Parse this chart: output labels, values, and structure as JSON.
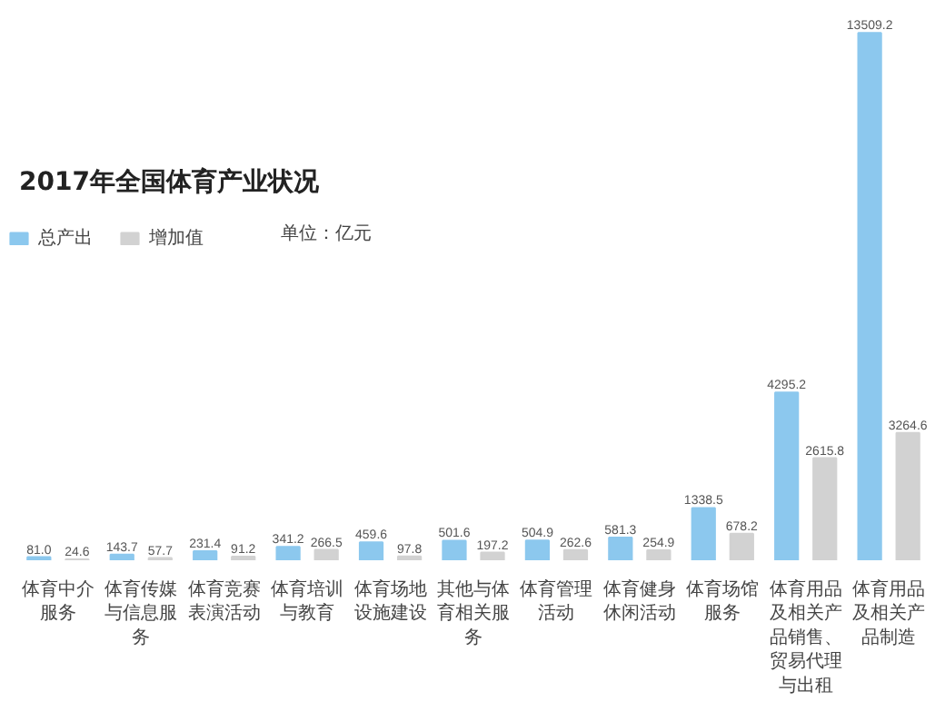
{
  "chart_data": {
    "type": "bar",
    "title": "2017年全国体育产业状况",
    "annotations": [
      "单位：亿元"
    ],
    "categories": [
      "体育中介服务",
      "体育传媒与信息服务",
      "体育竞赛表演活动",
      "体育培训与教育",
      "体育场地设施建设",
      "其他与体育相关服务",
      "体育管理活动",
      "体育健身休闲活动",
      "体育场馆服务",
      "体育用品及相关产品销售、贸易代理与出租",
      "体育用品及相关产品制造"
    ],
    "series": [
      {
        "name": "总产出",
        "color": "#8cc8ee",
        "values": [
          81.0,
          143.7,
          231.4,
          341.2,
          459.6,
          501.6,
          504.9,
          581.3,
          1338.5,
          4295.2,
          13509.2
        ],
        "value_labels": [
          "81.0",
          "143.7",
          "231.4",
          "341.2",
          "459.6",
          "501.6",
          "504.9",
          "581.3",
          "1338.5",
          "4295.2",
          "13509.2"
        ]
      },
      {
        "name": "增加值",
        "color": "#d2d2d2",
        "values": [
          24.6,
          57.7,
          91.2,
          266.5,
          97.8,
          197.2,
          262.6,
          254.9,
          678.2,
          2615.8,
          3264.6
        ],
        "value_labels": [
          "24.6",
          "57.7",
          "91.2",
          "266.5",
          "97.8",
          "197.2",
          "262.6",
          "254.9",
          "678.2",
          "2615.8",
          "3264.6"
        ]
      }
    ],
    "grid": false,
    "legend": "left",
    "tick_labels": "x"
  }
}
